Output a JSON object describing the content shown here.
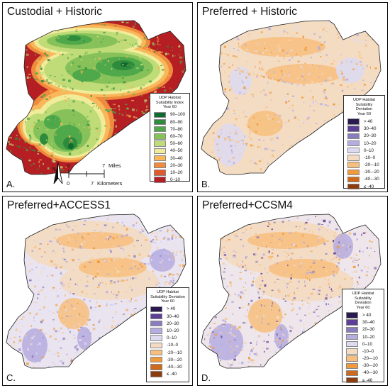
{
  "panels": [
    {
      "id": "A",
      "title": "Custodial + Historic",
      "letter": "A.",
      "legend": {
        "heading": [
          "UDP Habitat",
          "Suitability Index",
          "Year 60"
        ],
        "items": [
          {
            "label": "90–100",
            "color": "#0f6a2e"
          },
          {
            "label": "80–90",
            "color": "#2e8b3c"
          },
          {
            "label": "70–80",
            "color": "#4fa84a"
          },
          {
            "label": "60–70",
            "color": "#86c259"
          },
          {
            "label": "50–60",
            "color": "#bfdc78"
          },
          {
            "label": "40–50",
            "color": "#f1ec9a"
          },
          {
            "label": "30–40",
            "color": "#f9b65a"
          },
          {
            "label": "20–30",
            "color": "#f08a3c"
          },
          {
            "label": "10–20",
            "color": "#e05a2c"
          },
          {
            "label": "0–10",
            "color": "#b51f24"
          }
        ]
      },
      "scale": {
        "north": "N",
        "miles_zero": "0",
        "miles_value": "7",
        "miles_unit": "Miles",
        "km_zero": "0",
        "km_value": "7",
        "km_unit": "Kilometers"
      }
    },
    {
      "id": "B",
      "title": "Preferred + Historic",
      "letter": "B.",
      "legend": {
        "heading": [
          "UDP Habitat",
          "Suitability Deviation",
          "Year 60"
        ],
        "items": [
          {
            "label": "> 40",
            "color": "#2a1a4f"
          },
          {
            "label": "30–40",
            "color": "#5d3f98"
          },
          {
            "label": "20–30",
            "color": "#8b7bbf"
          },
          {
            "label": "10–20",
            "color": "#b5ace0"
          },
          {
            "label": "0–10",
            "color": "#dedaf0"
          },
          {
            "label": "-10–0",
            "color": "#f4dcc2"
          },
          {
            "label": "-20–-10",
            "color": "#f7bf7e"
          },
          {
            "label": "-30–-20",
            "color": "#ef9a3c"
          },
          {
            "label": "-40–-30",
            "color": "#cf6a1c"
          },
          {
            "label": "≤ -40",
            "color": "#8c3d0f"
          }
        ]
      }
    },
    {
      "id": "C",
      "title": "Preferred+ACCESS1",
      "letter": "C.",
      "legend": {
        "heading": [
          "UDP Habitat",
          "Suitability Deviation",
          "Year 60"
        ],
        "items": [
          {
            "label": "> 40",
            "color": "#2a1a4f"
          },
          {
            "label": "30–40",
            "color": "#5d3f98"
          },
          {
            "label": "20–30",
            "color": "#8b7bbf"
          },
          {
            "label": "10–20",
            "color": "#b5ace0"
          },
          {
            "label": "0–10",
            "color": "#dedaf0"
          },
          {
            "label": "-10–0",
            "color": "#f4dcc2"
          },
          {
            "label": "-20–-10",
            "color": "#f7bf7e"
          },
          {
            "label": "-30–-20",
            "color": "#ef9a3c"
          },
          {
            "label": "-40–-30",
            "color": "#cf6a1c"
          },
          {
            "label": "≤ -40",
            "color": "#8c3d0f"
          }
        ]
      }
    },
    {
      "id": "D",
      "title": "Preferred+CCSM4",
      "letter": "D.",
      "legend": {
        "heading": [
          "UDP Habitat",
          "Suitability Deviation",
          "Year 60"
        ],
        "items": [
          {
            "label": "> 40",
            "color": "#2a1a4f"
          },
          {
            "label": "30–40",
            "color": "#5d3f98"
          },
          {
            "label": "20–30",
            "color": "#8b7bbf"
          },
          {
            "label": "10–20",
            "color": "#b5ace0"
          },
          {
            "label": "0–10",
            "color": "#dedaf0"
          },
          {
            "label": "-10–0",
            "color": "#f4dcc2"
          },
          {
            "label": "-20–-10",
            "color": "#f7bf7e"
          },
          {
            "label": "-30–-20",
            "color": "#ef9a3c"
          },
          {
            "label": "-40–-30",
            "color": "#cf6a1c"
          },
          {
            "label": "≤ -40",
            "color": "#8c3d0f"
          }
        ]
      }
    }
  ]
}
